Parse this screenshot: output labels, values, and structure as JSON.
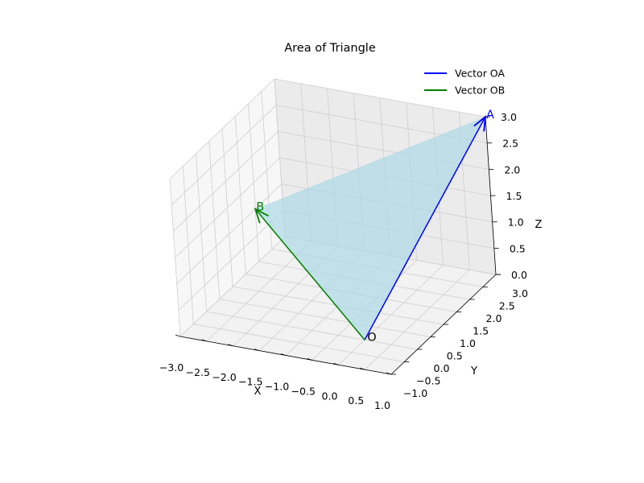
{
  "chart_data": {
    "type": "3d-vector-plot",
    "title": "Area of Triangle",
    "xlabel": "X",
    "ylabel": "Y",
    "zlabel": "Z",
    "xlim": [
      -3.0,
      1.0
    ],
    "ylim": [
      -1.0,
      3.0
    ],
    "zlim": [
      0.0,
      3.0
    ],
    "x_ticks": [
      -3.0,
      -2.5,
      -2.0,
      -1.5,
      -1.0,
      -0.5,
      0.0,
      0.5,
      1.0
    ],
    "x_tick_labels": [
      "−3.0",
      "−2.5",
      "−2.0",
      "−1.5",
      "−1.0",
      "−0.5",
      "0.0",
      "0.5",
      "1.0"
    ],
    "y_ticks": [
      -1.0,
      -0.5,
      0.0,
      0.5,
      1.0,
      1.5,
      2.0,
      2.5,
      3.0
    ],
    "y_tick_labels": [
      "−1.0",
      "−0.5",
      "0.0",
      "0.5",
      "1.0",
      "1.5",
      "2.0",
      "2.5",
      "3.0"
    ],
    "z_ticks": [
      0.0,
      0.5,
      1.0,
      1.5,
      2.0,
      2.5,
      3.0
    ],
    "z_tick_labels": [
      "0.0",
      "0.5",
      "1.0",
      "1.5",
      "2.0",
      "2.5",
      "3.0"
    ],
    "grid": true,
    "legend_position": "top-right",
    "origin": {
      "label": "O",
      "coords": [
        0,
        0,
        0
      ]
    },
    "vectors": [
      {
        "name": "Vector OA",
        "point_label": "A",
        "coords": [
          1,
          3,
          3
        ],
        "color": "#0000ff"
      },
      {
        "name": "Vector OB",
        "point_label": "B",
        "coords": [
          -3,
          2,
          1
        ],
        "color": "#008000"
      }
    ],
    "triangle_fill_color": "#add8e6"
  }
}
